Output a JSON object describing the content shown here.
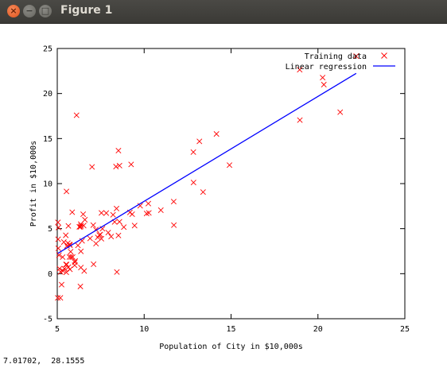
{
  "window": {
    "title": "Figure 1",
    "close_icon": "×",
    "minimize_icon": "−",
    "maximize_icon": "□"
  },
  "status_readout": "7.01702,  28.1555",
  "chart_data": {
    "type": "scatter",
    "title": "",
    "xlabel": "Population of City in $10,000s",
    "ylabel": "Profit in $10,000s",
    "xlim": [
      5,
      25
    ],
    "ylim": [
      -5,
      25
    ],
    "xticks": [
      "5",
      "10",
      "15",
      "20",
      "25"
    ],
    "yticks": [
      "-5",
      "0",
      "5",
      "10",
      "15",
      "20",
      "25"
    ],
    "legend_position": "top-right",
    "grid": false,
    "colors": {
      "points": "#ff0000",
      "line": "#0000ff"
    },
    "series": [
      {
        "name": "Training data",
        "marker": "x",
        "points": [
          [
            6.11,
            17.59
          ],
          [
            5.53,
            9.13
          ],
          [
            8.52,
            13.66
          ],
          [
            7.0,
            11.85
          ],
          [
            5.86,
            6.82
          ],
          [
            8.38,
            11.89
          ],
          [
            7.48,
            4.35
          ],
          [
            8.58,
            12.0
          ],
          [
            6.49,
            6.6
          ],
          [
            5.05,
            3.82
          ],
          [
            5.71,
            3.25
          ],
          [
            14.16,
            15.51
          ],
          [
            5.73,
            3.16
          ],
          [
            8.41,
            7.23
          ],
          [
            5.64,
            0.72
          ],
          [
            5.38,
            3.51
          ],
          [
            6.37,
            5.3
          ],
          [
            5.13,
            0.56
          ],
          [
            6.43,
            3.65
          ],
          [
            7.07,
            5.39
          ],
          [
            6.19,
            3.14
          ],
          [
            20.27,
            21.77
          ],
          [
            5.49,
            4.26
          ],
          [
            6.33,
            5.19
          ],
          [
            5.56,
            3.08
          ],
          [
            18.95,
            22.64
          ],
          [
            12.83,
            13.5
          ],
          [
            10.96,
            7.05
          ],
          [
            13.18,
            14.69
          ],
          [
            22.2,
            24.15
          ],
          [
            5.25,
            -1.22
          ],
          [
            6.59,
            5.99
          ],
          [
            9.25,
            12.13
          ],
          [
            5.89,
            1.85
          ],
          [
            8.21,
            6.54
          ],
          [
            7.93,
            4.56
          ],
          [
            8.1,
            4.12
          ],
          [
            5.61,
            3.39
          ],
          [
            12.84,
            10.12
          ],
          [
            6.35,
            5.5
          ],
          [
            5.41,
            0.56
          ],
          [
            6.89,
            3.91
          ],
          [
            11.71,
            5.39
          ],
          [
            5.77,
            2.44
          ],
          [
            7.82,
            6.73
          ],
          [
            7.09,
            1.05
          ],
          [
            5.07,
            5.13
          ],
          [
            5.8,
            1.84
          ],
          [
            11.7,
            8.0
          ],
          [
            5.54,
            1.02
          ],
          [
            7.54,
            6.75
          ],
          [
            5.31,
            1.84
          ],
          [
            7.42,
            4.29
          ],
          [
            7.6,
            4.99
          ],
          [
            6.03,
            1.42
          ],
          [
            6.33,
            -1.42
          ],
          [
            6.36,
            2.48
          ],
          [
            6.27,
            5.2
          ],
          [
            5.64,
            5.3
          ],
          [
            9.31,
            6.6
          ],
          [
            9.45,
            5.34
          ],
          [
            8.83,
            5.17
          ],
          [
            5.18,
            -2.68
          ],
          [
            21.28,
            17.93
          ],
          [
            14.91,
            12.05
          ],
          [
            18.96,
            17.05
          ],
          [
            7.22,
            4.89
          ],
          [
            8.3,
            5.74
          ],
          [
            10.24,
            7.78
          ],
          [
            5.5,
            1.02
          ],
          [
            20.34,
            20.99
          ],
          [
            10.14,
            6.68
          ],
          [
            7.33,
            4.03
          ],
          [
            6.01,
            1.28
          ],
          [
            7.23,
            3.34
          ],
          [
            5.03,
            -2.68
          ],
          [
            6.55,
            0.3
          ],
          [
            7.54,
            3.88
          ],
          [
            5.04,
            5.7
          ],
          [
            10.27,
            6.75
          ],
          [
            5.1,
            2.06
          ],
          [
            5.73,
            0.48
          ],
          [
            5.19,
            0.2
          ],
          [
            6.36,
            0.68
          ],
          [
            9.77,
            7.54
          ],
          [
            6.52,
            5.34
          ],
          [
            8.52,
            4.24
          ],
          [
            9.18,
            6.8
          ],
          [
            6.0,
            0.93
          ],
          [
            5.52,
            0.15
          ],
          [
            5.06,
            2.82
          ],
          [
            5.7,
            1.85
          ],
          [
            13.39,
            9.06
          ],
          [
            8.43,
            0.18
          ],
          [
            5.33,
            0.3
          ],
          [
            8.58,
            5.76
          ]
        ]
      },
      {
        "name": "Linear regression",
        "type": "line",
        "x": [
          5.03,
          22.2
        ],
        "y": [
          2.25,
          22.24
        ]
      }
    ]
  }
}
